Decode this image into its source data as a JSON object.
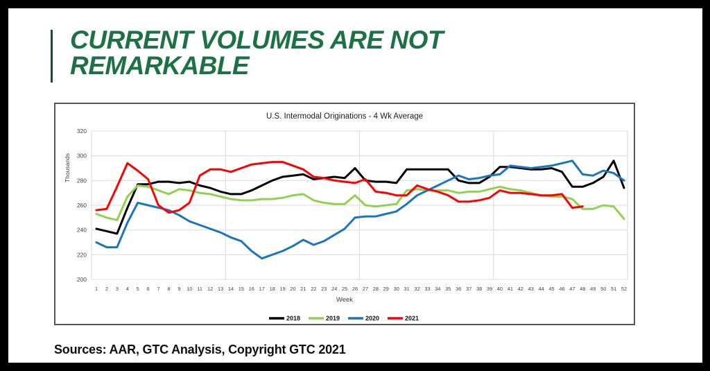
{
  "slide": {
    "title_line1": "CURRENT VOLUMES ARE NOT",
    "title_line2": "REMARKABLE",
    "title_color": "#1E7145",
    "accent_bar_color": "#1C4A31",
    "sources": "Sources: AAR, GTC Analysis, Copyright GTC 2021",
    "frame_color": "#000000"
  },
  "chart_data": {
    "type": "line",
    "title": "U.S. Intermodal Originations - 4 Wk Average",
    "xlabel": "Week",
    "ylabel": "Thousands",
    "ylim": [
      200,
      320
    ],
    "yticks": [
      320,
      300,
      280,
      260,
      240,
      220,
      200
    ],
    "grid": true,
    "legend_position": "bottom",
    "gridline_color": "#D9D9D9",
    "weeks": [
      1,
      2,
      3,
      4,
      5,
      6,
      7,
      8,
      9,
      10,
      11,
      12,
      13,
      14,
      15,
      16,
      17,
      18,
      19,
      20,
      21,
      22,
      23,
      24,
      25,
      26,
      27,
      28,
      29,
      30,
      31,
      32,
      33,
      34,
      35,
      36,
      37,
      38,
      39,
      40,
      41,
      42,
      43,
      44,
      45,
      46,
      47,
      48,
      49,
      50,
      51,
      52
    ],
    "series": [
      {
        "name": "2018",
        "color": "#000000",
        "values": [
          241,
          239,
          237,
          258,
          277,
          277,
          279,
          279,
          278,
          279,
          276,
          274,
          271,
          269,
          269,
          272,
          276,
          280,
          283,
          284,
          285,
          281,
          282,
          283,
          282,
          290,
          280,
          279,
          279,
          278,
          289,
          289,
          289,
          289,
          289,
          280,
          278,
          278,
          283,
          291,
          291,
          290,
          289,
          289,
          290,
          287,
          275,
          275,
          278,
          283,
          296,
          274
        ]
      },
      {
        "name": "2019",
        "color": "#92D050",
        "values": [
          253,
          250,
          248,
          267,
          276,
          275,
          272,
          269,
          273,
          272,
          270,
          269,
          267,
          265,
          264,
          264,
          265,
          265,
          266,
          268,
          269,
          264,
          262,
          261,
          261,
          268,
          260,
          259,
          260,
          261,
          272,
          273,
          272,
          272,
          272,
          270,
          271,
          271,
          273,
          275,
          273,
          272,
          270,
          268,
          267,
          267,
          265,
          257,
          257,
          260,
          259,
          249
        ]
      },
      {
        "name": "2020",
        "color": "#1B75BC",
        "values": [
          230,
          226,
          226,
          246,
          262,
          260,
          258,
          256,
          252,
          247,
          244,
          241,
          238,
          234,
          231,
          223,
          217,
          220,
          223,
          227,
          232,
          228,
          231,
          236,
          241,
          250,
          251,
          251,
          253,
          255,
          261,
          268,
          272,
          276,
          280,
          284,
          281,
          282,
          284,
          285,
          292,
          291,
          290,
          291,
          292,
          294,
          296,
          285,
          284,
          288,
          286,
          280
        ]
      },
      {
        "name": "2021",
        "color": "#FF0000",
        "values": [
          256,
          257,
          275,
          294,
          288,
          281,
          260,
          254,
          256,
          262,
          284,
          289,
          289,
          287,
          290,
          293,
          294,
          295,
          295,
          292,
          289,
          283,
          282,
          280,
          279,
          278,
          281,
          271,
          270,
          268,
          268,
          276,
          273,
          271,
          268,
          263,
          263,
          264,
          266,
          272,
          270,
          270,
          269,
          268,
          268,
          269,
          258,
          259,
          null,
          null,
          null,
          null
        ]
      }
    ]
  }
}
